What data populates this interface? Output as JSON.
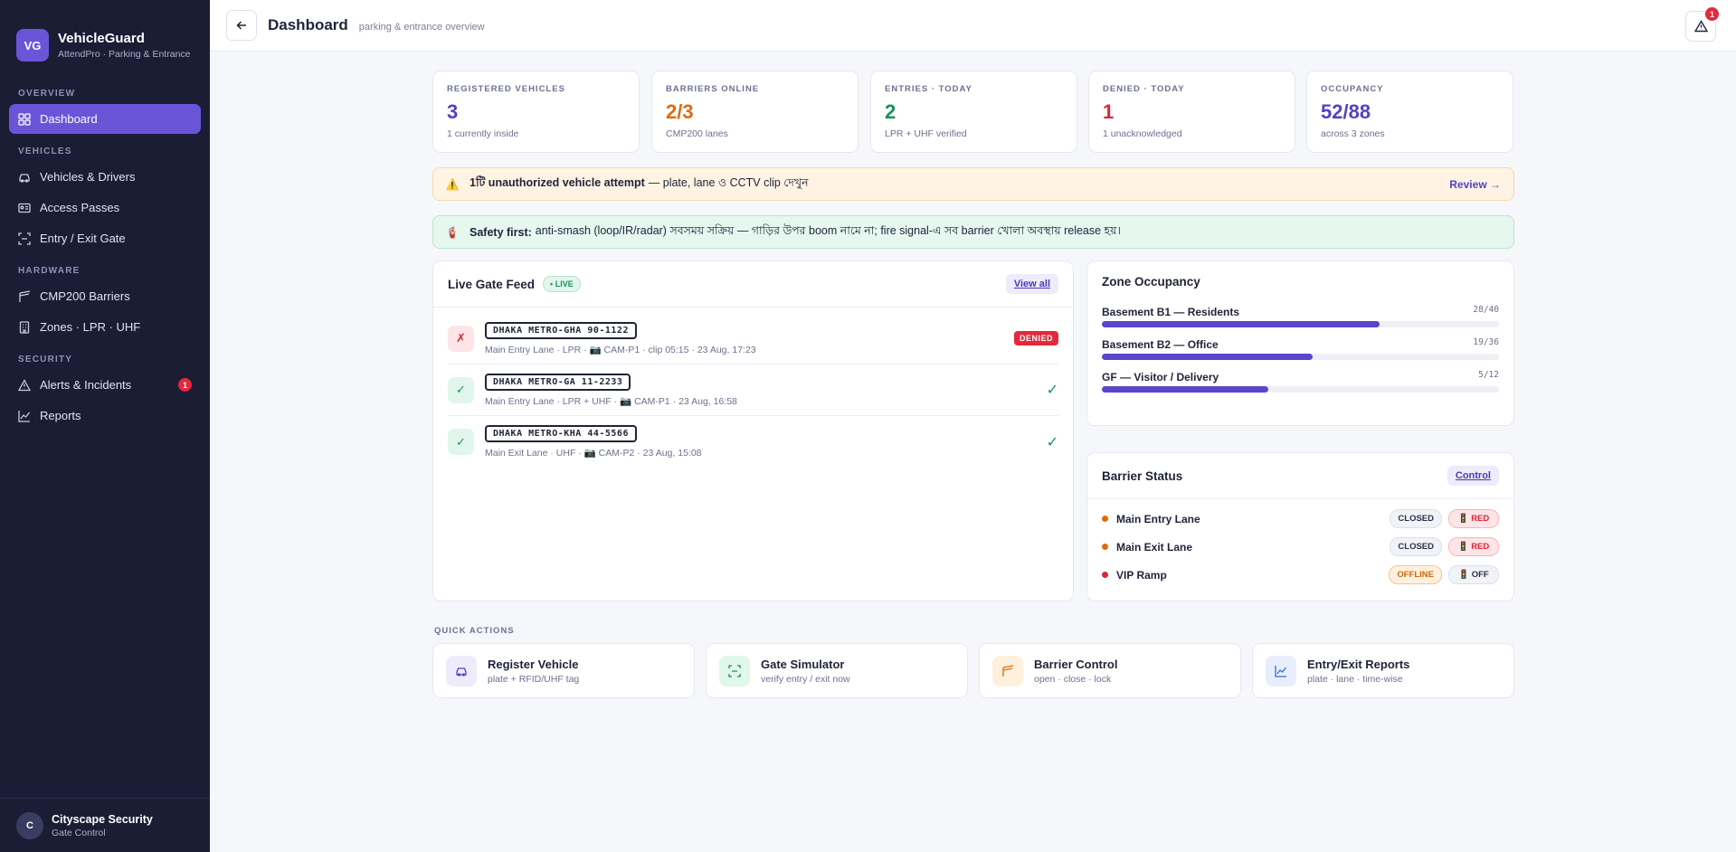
{
  "brand": {
    "logo": "VG",
    "name": "VehicleGuard",
    "sub": "AttendPro · Parking & Entrance"
  },
  "sidebar": {
    "sections": [
      "OVERVIEW",
      "VEHICLES",
      "HARDWARE",
      "SECURITY"
    ],
    "items": [
      {
        "label": "Dashboard",
        "icon": "grid-icon"
      },
      {
        "label": "Vehicles & Drivers",
        "icon": "car-icon"
      },
      {
        "label": "Access Passes",
        "icon": "id-card-icon"
      },
      {
        "label": "Entry / Exit Gate",
        "icon": "scan-icon"
      },
      {
        "label": "CMP200 Barriers",
        "icon": "barrier-icon"
      },
      {
        "label": "Zones · LPR · UHF",
        "icon": "building-icon"
      },
      {
        "label": "Alerts & Incidents",
        "icon": "warning-icon",
        "badge": "1"
      },
      {
        "label": "Reports",
        "icon": "chart-icon"
      }
    ],
    "user": {
      "initial": "C",
      "name": "Cityscape Security",
      "role": "Gate Control"
    }
  },
  "header": {
    "title": "Dashboard",
    "subtitle": "parking & entrance overview",
    "alert_count": "1"
  },
  "stats": [
    {
      "label": "REGISTERED VEHICLES",
      "value": "3",
      "sub": "1 currently inside",
      "color": "#5541c4"
    },
    {
      "label": "BARRIERS ONLINE",
      "value": "2/3",
      "sub": "CMP200 lanes",
      "color": "#e06a10"
    },
    {
      "label": "ENTRIES · TODAY",
      "value": "2",
      "sub": "LPR + UHF verified",
      "color": "#17925a"
    },
    {
      "label": "DENIED · TODAY",
      "value": "1",
      "sub": "1 unacknowledged",
      "color": "#d9283a"
    },
    {
      "label": "OCCUPANCY",
      "value": "52/88",
      "sub": "across 3 zones",
      "color": "#5541c4"
    }
  ],
  "banners": {
    "warn": {
      "bold": "1টি unauthorized vehicle attempt",
      "text": "— plate, lane ও CCTV clip দেখুন",
      "action": "Review →"
    },
    "safety": {
      "bold": "Safety first:",
      "text": "anti-smash (loop/IR/radar) সবসময় সক্রিয় — গাড়ির উপর boom নামে না; fire signal-এ সব barrier খোলা অবস্থায় release হয়।"
    }
  },
  "feed": {
    "title": "Live Gate Feed",
    "live": "• LIVE",
    "view_all": "View all",
    "rows": [
      {
        "status": "denied",
        "icon": "✗",
        "plate": "DHAKA METRO-GHA 90-1122",
        "meta": "Main Entry Lane · LPR · 📷 CAM-P1 · clip 05:15 · 23 Aug, 17:23",
        "badge": "DENIED"
      },
      {
        "status": "ok",
        "icon": "✓",
        "plate": "DHAKA METRO-GA 11-2233",
        "meta": "Main Entry Lane · LPR + UHF · 📷 CAM-P1 · 23 Aug, 16:58",
        "mark": "✓"
      },
      {
        "status": "ok",
        "icon": "✓",
        "plate": "DHAKA METRO-KHA 44-5566",
        "meta": "Main Exit Lane · UHF · 📷 CAM-P2 · 23 Aug, 15:08",
        "mark": "✓"
      }
    ]
  },
  "zones": {
    "title": "Zone Occupancy",
    "rows": [
      {
        "name": "Basement B1 — Residents",
        "count": "28/40",
        "fill": 0.7
      },
      {
        "name": "Basement B2 — Office",
        "count": "19/36",
        "fill": 0.53
      },
      {
        "name": "GF — Visitor / Delivery",
        "count": "5/12",
        "fill": 0.42
      }
    ]
  },
  "barriers": {
    "title": "Barrier Status",
    "control": "Control",
    "rows": [
      {
        "name": "Main Entry Lane",
        "state": "CLOSED",
        "signal": "🚦 RED",
        "dot": "#e06a10"
      },
      {
        "name": "Main Exit Lane",
        "state": "CLOSED",
        "signal": "🚦 RED",
        "dot": "#e06a10"
      },
      {
        "name": "VIP Ramp",
        "state": "OFFLINE",
        "signal": "🚦 OFF",
        "dot": "#d9283a"
      }
    ]
  },
  "quick_actions": {
    "label": "QUICK ACTIONS",
    "items": [
      {
        "title": "Register Vehicle",
        "sub": "plate + RFID/UHF tag",
        "icon": "car-icon"
      },
      {
        "title": "Gate Simulator",
        "sub": "verify entry / exit now",
        "icon": "scan-icon"
      },
      {
        "title": "Barrier Control",
        "sub": "open · close · lock",
        "icon": "barrier-icon"
      },
      {
        "title": "Entry/Exit Reports",
        "sub": "plate · lane · time-wise",
        "icon": "chart-icon"
      }
    ]
  }
}
